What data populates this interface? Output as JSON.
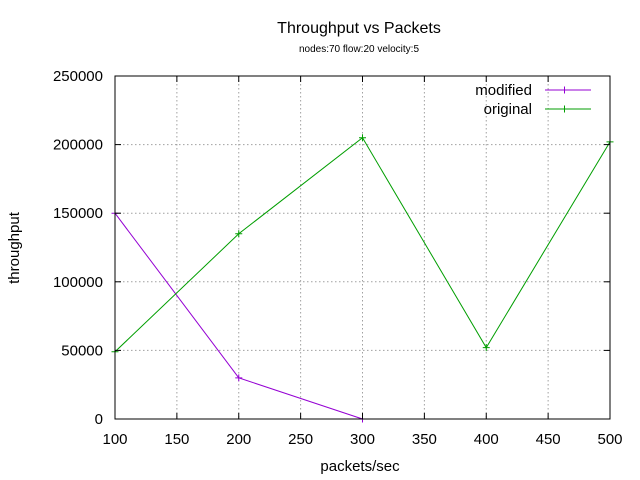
{
  "chart_data": {
    "type": "line",
    "title": "Throughput vs Packets",
    "subtitle": "nodes:70  flow:20  velocity:5",
    "xlabel": "packets/sec",
    "ylabel": "throughput",
    "xlim": [
      100,
      500
    ],
    "ylim": [
      0,
      250000
    ],
    "xticks": [
      100,
      150,
      200,
      250,
      300,
      350,
      400,
      450,
      500
    ],
    "yticks": [
      0,
      50000,
      100000,
      150000,
      200000,
      250000
    ],
    "grid": true,
    "legend_position": "top-right",
    "series": [
      {
        "name": "modified",
        "color": "#9400d3",
        "x": [
          100,
          200,
          300
        ],
        "y": [
          150000,
          30000,
          0
        ]
      },
      {
        "name": "original",
        "color": "#009e00",
        "x": [
          100,
          200,
          300,
          400,
          500
        ],
        "y": [
          49000,
          135000,
          205000,
          52000,
          202000
        ]
      }
    ]
  }
}
